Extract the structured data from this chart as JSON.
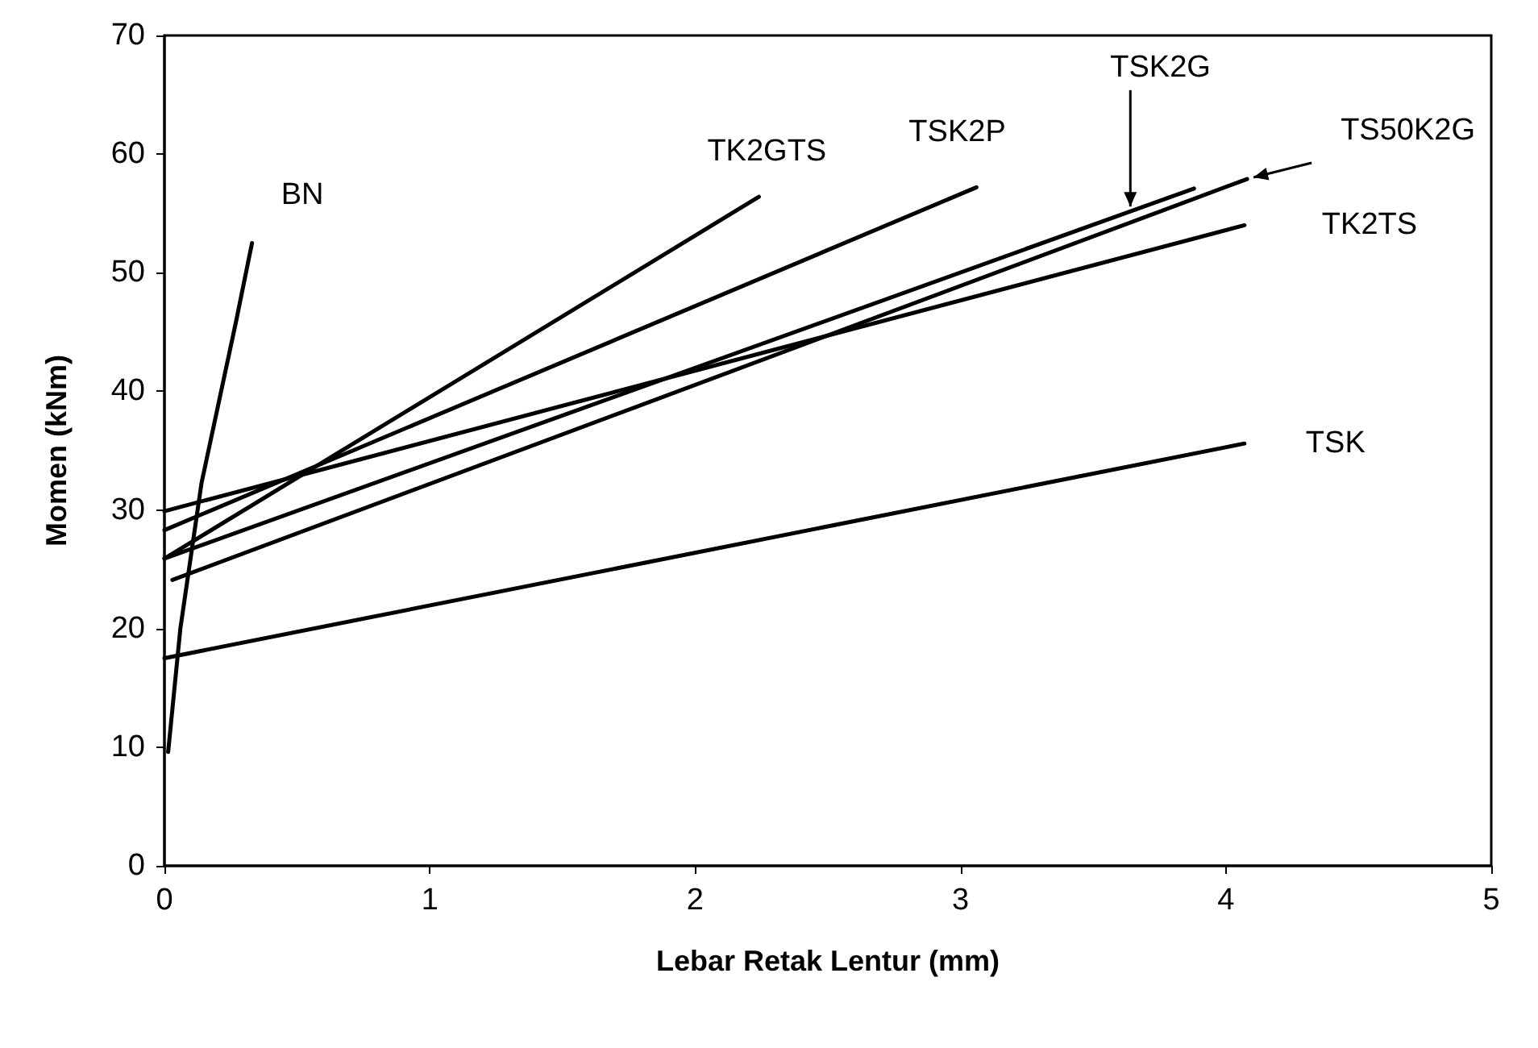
{
  "chart_data": {
    "type": "line",
    "xlabel": "Lebar Retak Lentur (mm)",
    "ylabel": "Momen (kNm)",
    "xlim": [
      0,
      5
    ],
    "xticks": [
      0,
      1,
      2,
      3,
      4,
      5
    ],
    "ylim": [
      0,
      70
    ],
    "yticks": [
      0,
      10,
      20,
      30,
      40,
      50,
      60,
      70
    ],
    "grid": false,
    "legend": false,
    "marker": "none",
    "line_style": "solid",
    "series": [
      {
        "name": "BN",
        "color": "#000000",
        "x": [
          0.014,
          0.06,
          0.14,
          0.27,
          0.33
        ],
        "values": [
          9.6,
          20,
          32.3,
          45.9,
          52.5
        ]
      },
      {
        "name": "TK2GTS",
        "color": "#000000",
        "x": [
          0,
          2.24
        ],
        "values": [
          25.9,
          56.4
        ]
      },
      {
        "name": "TSK2P",
        "color": "#000000",
        "x": [
          0,
          3.06
        ],
        "values": [
          28.3,
          57.2
        ]
      },
      {
        "name": "TSK2G",
        "color": "#000000",
        "x": [
          0,
          3.88
        ],
        "values": [
          25.9,
          57.1
        ]
      },
      {
        "name": "TS50K2G",
        "color": "#000000",
        "x": [
          0.03,
          4.08
        ],
        "values": [
          24.1,
          57.9
        ]
      },
      {
        "name": "TK2TS",
        "color": "#000000",
        "x": [
          0,
          4.07
        ],
        "values": [
          29.9,
          54
        ]
      },
      {
        "name": "TSK",
        "color": "#000000",
        "x": [
          0,
          4.07
        ],
        "values": [
          17.5,
          35.6
        ]
      }
    ]
  }
}
